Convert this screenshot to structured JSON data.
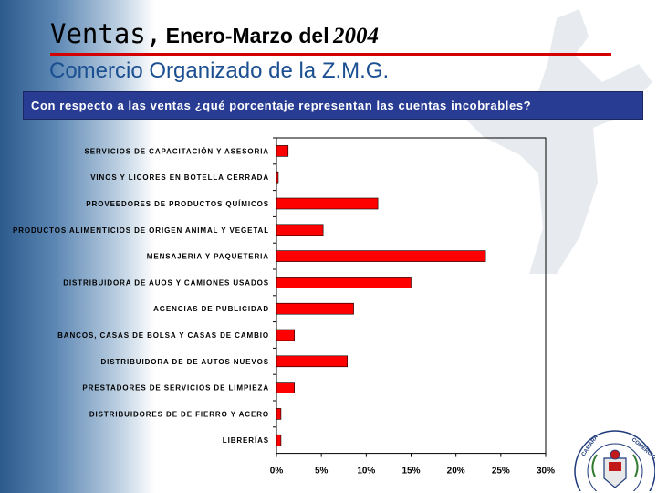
{
  "header": {
    "title_ventas": "Ventas,",
    "title_period": "Enero-Marzo del",
    "title_year": "2004",
    "subtitle": "Comercio Organizado de la Z.M.G."
  },
  "banner": {
    "question": "Con respecto a las ventas ¿qué porcentaje representan las cuentas incobrables?"
  },
  "chart_data": {
    "type": "bar",
    "orientation": "horizontal",
    "categories": [
      "SERVICIOS DE CAPACITACIÓN Y ASESORIA",
      "VINOS Y LICORES EN BOTELLA CERRADA",
      "PROVEEDORES DE PRODUCTOS QUÍMICOS",
      "PRODUCTOS ALIMENTICIOS DE ORIGEN ANIMAL Y VEGETAL",
      "MENSAJERIA Y PAQUETERIA",
      "DISTRIBUIDORA DE AUOS Y CAMIONES USADOS",
      "AGENCIAS DE PUBLICIDAD",
      "BANCOS, CASAS DE BOLSA Y CASAS DE CAMBIO",
      "DISTRIBUIDORA DE DE AUTOS NUEVOS",
      "PRESTADORES DE SERVICIOS DE LIMPIEZA",
      "DISTRIBUIDORES DE DE FIERRO Y ACERO",
      "LIBRERÍAS"
    ],
    "values": [
      1.3,
      0.2,
      11.3,
      5.2,
      23.3,
      15.0,
      8.6,
      2.0,
      7.9,
      2.0,
      0.5,
      0.5
    ],
    "xlim": [
      0,
      30
    ],
    "ticks": [
      "0%",
      "5%",
      "10%",
      "15%",
      "20%",
      "25%",
      "30%"
    ],
    "bar_color": "#ff0000",
    "grid": false,
    "xlabel": "",
    "ylabel": ""
  },
  "seal": {
    "text": "CAMARA DE COMERCIO DE GUADALAJARA"
  },
  "colors": {
    "banner": "#283c93",
    "rule": "#d40000",
    "subtitle": "#1a4f91"
  }
}
